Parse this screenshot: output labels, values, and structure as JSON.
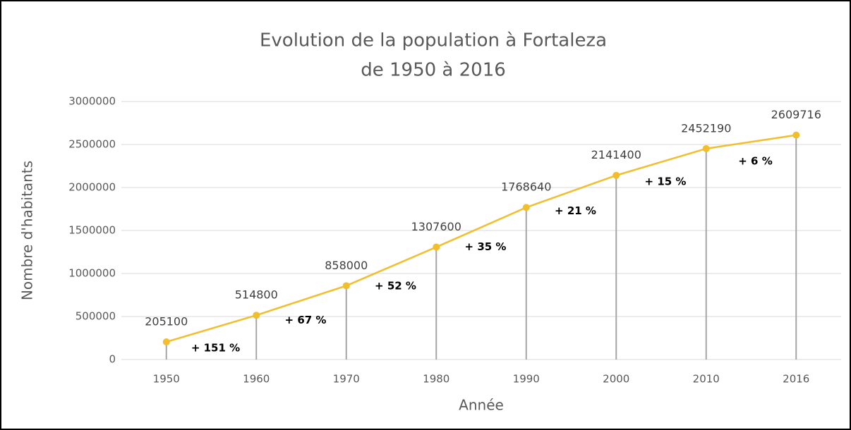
{
  "chart_data": {
    "type": "line",
    "title": [
      "Evolution de la population à Fortaleza",
      "de 1950 à 2016"
    ],
    "x_label": "Année",
    "y_label": "Nombre d'habitants",
    "categories": [
      "1950",
      "1960",
      "1970",
      "1980",
      "1990",
      "2000",
      "2010",
      "2016"
    ],
    "series": [
      {
        "name": "Population",
        "color": "#f2be2c",
        "values": [
          205100,
          514800,
          858000,
          1307600,
          1768640,
          2141400,
          2452190,
          2609716
        ]
      }
    ],
    "annotations": [
      "+ 151 %",
      "+ 67 %",
      "+ 52 %",
      "+ 35 %",
      "+ 21 %",
      "+ 15 %",
      "+ 6 %"
    ],
    "ylim": [
      0,
      3000000
    ],
    "yticks": [
      0,
      500000,
      1000000,
      1500000,
      2000000,
      2500000,
      3000000
    ],
    "grid": true,
    "drop_lines": true
  }
}
